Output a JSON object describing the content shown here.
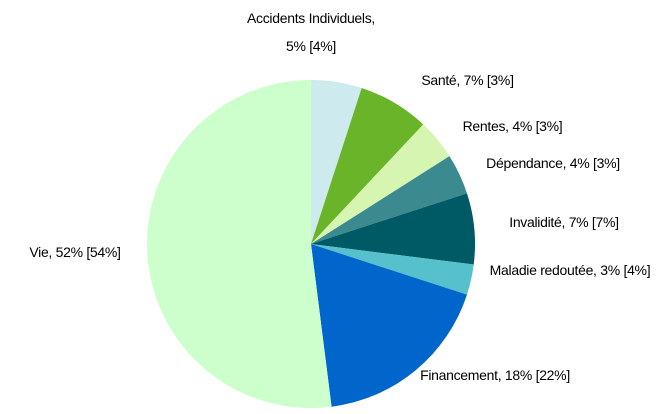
{
  "chart_data": {
    "type": "pie",
    "categories": [
      "Accidents Individuels,",
      "Santé,",
      "Rentes,",
      "Dépendance,",
      "Invalidité,",
      "Maladie redoutée,",
      "Financement,",
      "Vie,"
    ],
    "values": [
      5,
      7,
      4,
      4,
      7,
      3,
      18,
      52
    ],
    "value_labels": [
      "5%",
      "7%",
      "4%",
      "4%",
      "7%",
      "3%",
      "18%",
      "52%"
    ],
    "bracket_values": [
      4,
      3,
      3,
      3,
      7,
      4,
      22,
      54
    ],
    "bracket_labels": [
      "[4%]",
      "[3%]",
      "[3%]",
      "[3%]",
      "[7%]",
      "[4%]",
      "[22%]",
      "[54%]"
    ],
    "colors": [
      "#cdeaee",
      "#6ab42a",
      "#d6f5b0",
      "#3a8a8f",
      "#005a66",
      "#56c0cc",
      "#0066cc",
      "#ccffcc"
    ]
  }
}
